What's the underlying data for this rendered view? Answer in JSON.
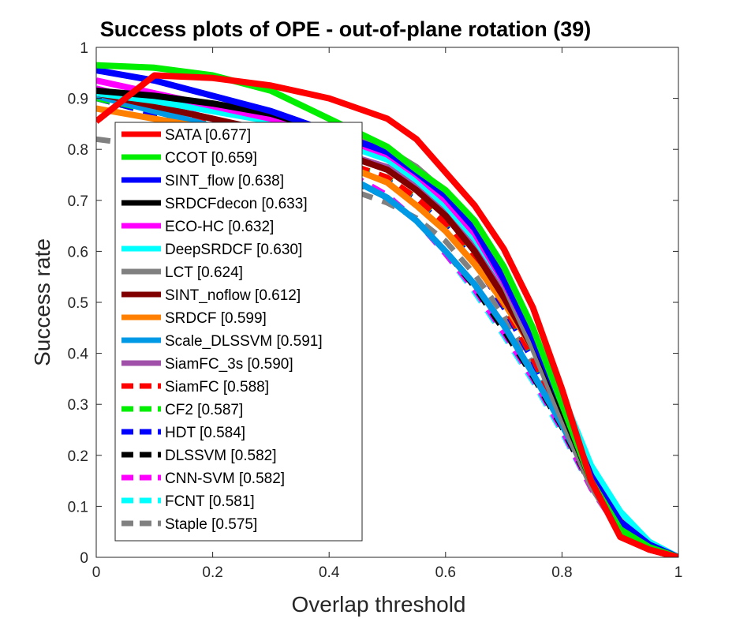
{
  "chart_data": {
    "type": "line",
    "title": "Success plots of OPE - out-of-plane rotation (39)",
    "xlabel": "Overlap threshold",
    "ylabel": "Success rate",
    "xlim": [
      0,
      1
    ],
    "ylim": [
      0,
      1
    ],
    "grid": false,
    "legend_position": "left",
    "x_ticks": [
      "0",
      "0.2",
      "0.4",
      "0.6",
      "0.8",
      "1"
    ],
    "y_ticks": [
      "0",
      "0.1",
      "0.2",
      "0.3",
      "0.4",
      "0.5",
      "0.6",
      "0.7",
      "0.8",
      "0.9",
      "1"
    ],
    "x": [
      0,
      0.1,
      0.2,
      0.3,
      0.4,
      0.5,
      0.55,
      0.6,
      0.65,
      0.7,
      0.75,
      0.8,
      0.85,
      0.9,
      0.95,
      1.0
    ],
    "series": [
      {
        "name": "SATA [0.677]",
        "color": "#ff0000",
        "dash": false,
        "values": [
          0.855,
          0.945,
          0.94,
          0.925,
          0.9,
          0.86,
          0.82,
          0.755,
          0.69,
          0.605,
          0.49,
          0.33,
          0.15,
          0.04,
          0.015,
          0.0
        ]
      },
      {
        "name": "CCOT [0.659]",
        "color": "#00ee00",
        "dash": false,
        "values": [
          0.965,
          0.96,
          0.945,
          0.915,
          0.86,
          0.805,
          0.76,
          0.72,
          0.66,
          0.57,
          0.45,
          0.3,
          0.15,
          0.055,
          0.02,
          0.0
        ]
      },
      {
        "name": "SINT_flow [0.638]",
        "color": "#0000ff",
        "dash": false,
        "values": [
          0.955,
          0.935,
          0.905,
          0.875,
          0.835,
          0.795,
          0.755,
          0.71,
          0.645,
          0.545,
          0.43,
          0.3,
          0.16,
          0.07,
          0.025,
          0.0
        ]
      },
      {
        "name": "SRDCFdecon [0.633]",
        "color": "#000000",
        "dash": false,
        "values": [
          0.915,
          0.905,
          0.89,
          0.87,
          0.835,
          0.795,
          0.755,
          0.71,
          0.645,
          0.545,
          0.43,
          0.29,
          0.15,
          0.06,
          0.02,
          0.0
        ]
      },
      {
        "name": "ECO-HC [0.632]",
        "color": "#ff00ff",
        "dash": false,
        "values": [
          0.935,
          0.91,
          0.885,
          0.86,
          0.83,
          0.79,
          0.75,
          0.7,
          0.635,
          0.54,
          0.43,
          0.3,
          0.16,
          0.07,
          0.025,
          0.0
        ]
      },
      {
        "name": "DeepSRDCF [0.630]",
        "color": "#00ffff",
        "dash": false,
        "values": [
          0.91,
          0.895,
          0.875,
          0.855,
          0.82,
          0.78,
          0.74,
          0.69,
          0.625,
          0.54,
          0.44,
          0.32,
          0.18,
          0.09,
          0.03,
          0.0
        ]
      },
      {
        "name": "LCT [0.624]",
        "color": "#808080",
        "dash": false,
        "values": [
          0.91,
          0.9,
          0.88,
          0.86,
          0.835,
          0.8,
          0.765,
          0.715,
          0.64,
          0.535,
          0.41,
          0.27,
          0.14,
          0.05,
          0.015,
          0.0
        ]
      },
      {
        "name": "SINT_noflow [0.612]",
        "color": "#800000",
        "dash": false,
        "values": [
          0.91,
          0.885,
          0.86,
          0.835,
          0.8,
          0.76,
          0.72,
          0.67,
          0.6,
          0.51,
          0.41,
          0.29,
          0.16,
          0.07,
          0.025,
          0.0
        ]
      },
      {
        "name": "SRDCF [0.599]",
        "color": "#ff8000",
        "dash": false,
        "values": [
          0.88,
          0.86,
          0.84,
          0.81,
          0.78,
          0.735,
          0.69,
          0.64,
          0.575,
          0.5,
          0.41,
          0.3,
          0.17,
          0.075,
          0.025,
          0.0
        ]
      },
      {
        "name": "Scale_DLSSVM [0.591]",
        "color": "#0099e6",
        "dash": false,
        "values": [
          0.905,
          0.875,
          0.845,
          0.81,
          0.765,
          0.705,
          0.66,
          0.6,
          0.535,
          0.455,
          0.36,
          0.26,
          0.15,
          0.075,
          0.03,
          0.0
        ]
      },
      {
        "name": "SiamFC_3s [0.590]",
        "color": "#a050a8",
        "dash": false,
        "values": [
          0.91,
          0.885,
          0.86,
          0.83,
          0.8,
          0.765,
          0.73,
          0.685,
          0.615,
          0.52,
          0.41,
          0.28,
          0.14,
          0.05,
          0.015,
          0.0
        ]
      },
      {
        "name": "SiamFC [0.588]",
        "color": "#ff0000",
        "dash": true,
        "values": [
          0.905,
          0.88,
          0.85,
          0.82,
          0.785,
          0.745,
          0.705,
          0.655,
          0.585,
          0.495,
          0.39,
          0.27,
          0.14,
          0.055,
          0.02,
          0.0
        ]
      },
      {
        "name": "CF2 [0.587]",
        "color": "#00ee00",
        "dash": true,
        "values": [
          0.9,
          0.875,
          0.85,
          0.82,
          0.785,
          0.745,
          0.705,
          0.655,
          0.585,
          0.495,
          0.39,
          0.27,
          0.14,
          0.055,
          0.02,
          0.0
        ]
      },
      {
        "name": "HDT [0.584]",
        "color": "#0000ff",
        "dash": true,
        "values": [
          0.9,
          0.87,
          0.845,
          0.815,
          0.78,
          0.74,
          0.7,
          0.65,
          0.58,
          0.49,
          0.385,
          0.265,
          0.14,
          0.055,
          0.02,
          0.0
        ]
      },
      {
        "name": "DLSSVM [0.582]",
        "color": "#000000",
        "dash": true,
        "values": [
          0.9,
          0.87,
          0.84,
          0.805,
          0.76,
          0.705,
          0.66,
          0.6,
          0.53,
          0.445,
          0.355,
          0.255,
          0.14,
          0.055,
          0.02,
          0.0
        ]
      },
      {
        "name": "CNN-SVM [0.582]",
        "color": "#ff00ff",
        "dash": true,
        "values": [
          0.92,
          0.89,
          0.86,
          0.82,
          0.775,
          0.71,
          0.66,
          0.595,
          0.525,
          0.44,
          0.35,
          0.25,
          0.135,
          0.05,
          0.015,
          0.0
        ]
      },
      {
        "name": "FCNT [0.581]",
        "color": "#00ffff",
        "dash": true,
        "values": [
          0.92,
          0.89,
          0.86,
          0.82,
          0.775,
          0.71,
          0.66,
          0.595,
          0.52,
          0.435,
          0.345,
          0.245,
          0.135,
          0.05,
          0.015,
          0.0
        ]
      },
      {
        "name": "Staple [0.575]",
        "color": "#808080",
        "dash": true,
        "values": [
          0.82,
          0.805,
          0.79,
          0.765,
          0.735,
          0.695,
          0.665,
          0.62,
          0.555,
          0.475,
          0.38,
          0.27,
          0.145,
          0.06,
          0.02,
          0.0
        ]
      }
    ]
  }
}
